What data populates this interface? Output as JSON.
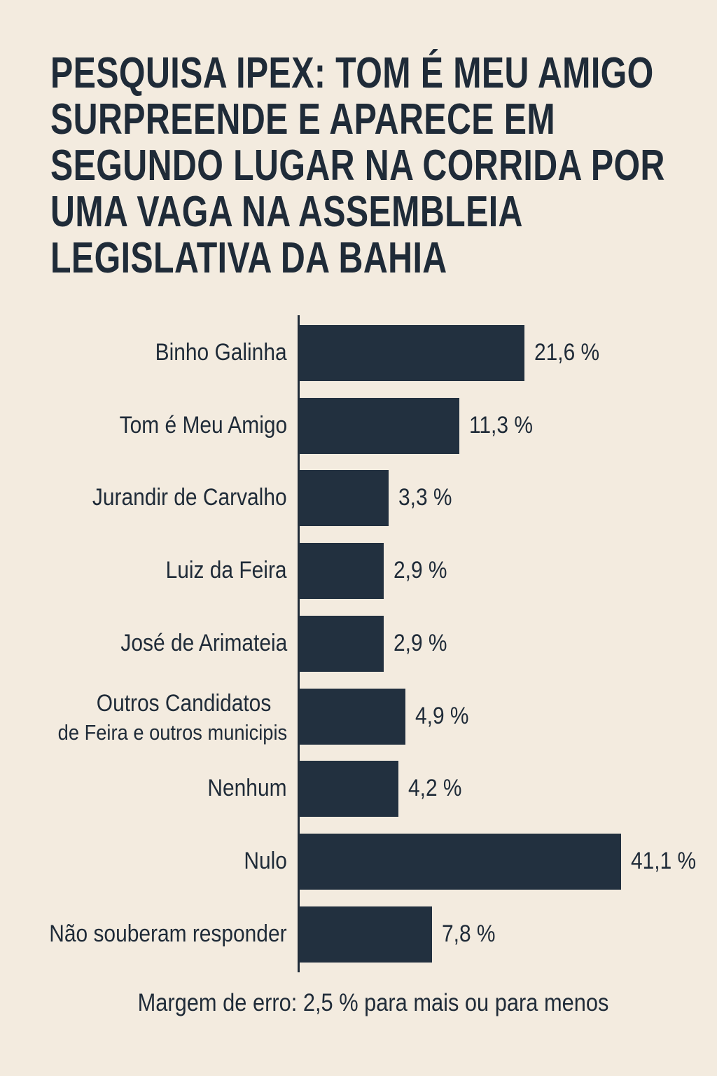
{
  "chart_data": {
    "type": "bar",
    "orientation": "horizontal",
    "title_lines": [
      "PESQUISA IPEX: TOM É MEU AMIGO",
      "SURPREENDE E APARECE EM",
      "SEGUNDO LUGAR NA CORRIDA POR",
      "UMA VAGA NA ASSEMBLEIA",
      "LEGISLATIVA DA BAHIA"
    ],
    "categories": [
      [
        "Binho Galinha"
      ],
      [
        "Tom é Meu Amigo"
      ],
      [
        "Jurandir de Carvalho"
      ],
      [
        "Luiz da Feira"
      ],
      [
        "José de Arimateia"
      ],
      [
        "Outros Candidatos",
        "de Feira e outros municipis"
      ],
      [
        "Nenhum"
      ],
      [
        "Nulo"
      ],
      [
        "Não souberam responder"
      ]
    ],
    "values": [
      21.6,
      11.3,
      3.3,
      2.9,
      2.9,
      4.9,
      4.2,
      41.1,
      7.8
    ],
    "value_labels": [
      "21,6 %",
      "11,3 %",
      "3,3 %",
      "2,9 %",
      "2,9 %",
      "4,9 %",
      "4,2 %",
      "41,1 %",
      "7,8 %"
    ],
    "unit": "%",
    "xlabel": "",
    "ylabel": "",
    "grid": false,
    "legend": "none",
    "bar_color": "#22303f",
    "background": "#f3ebdf",
    "footnote": "Margem de erro: 2,5 % para mais ou para menos"
  }
}
